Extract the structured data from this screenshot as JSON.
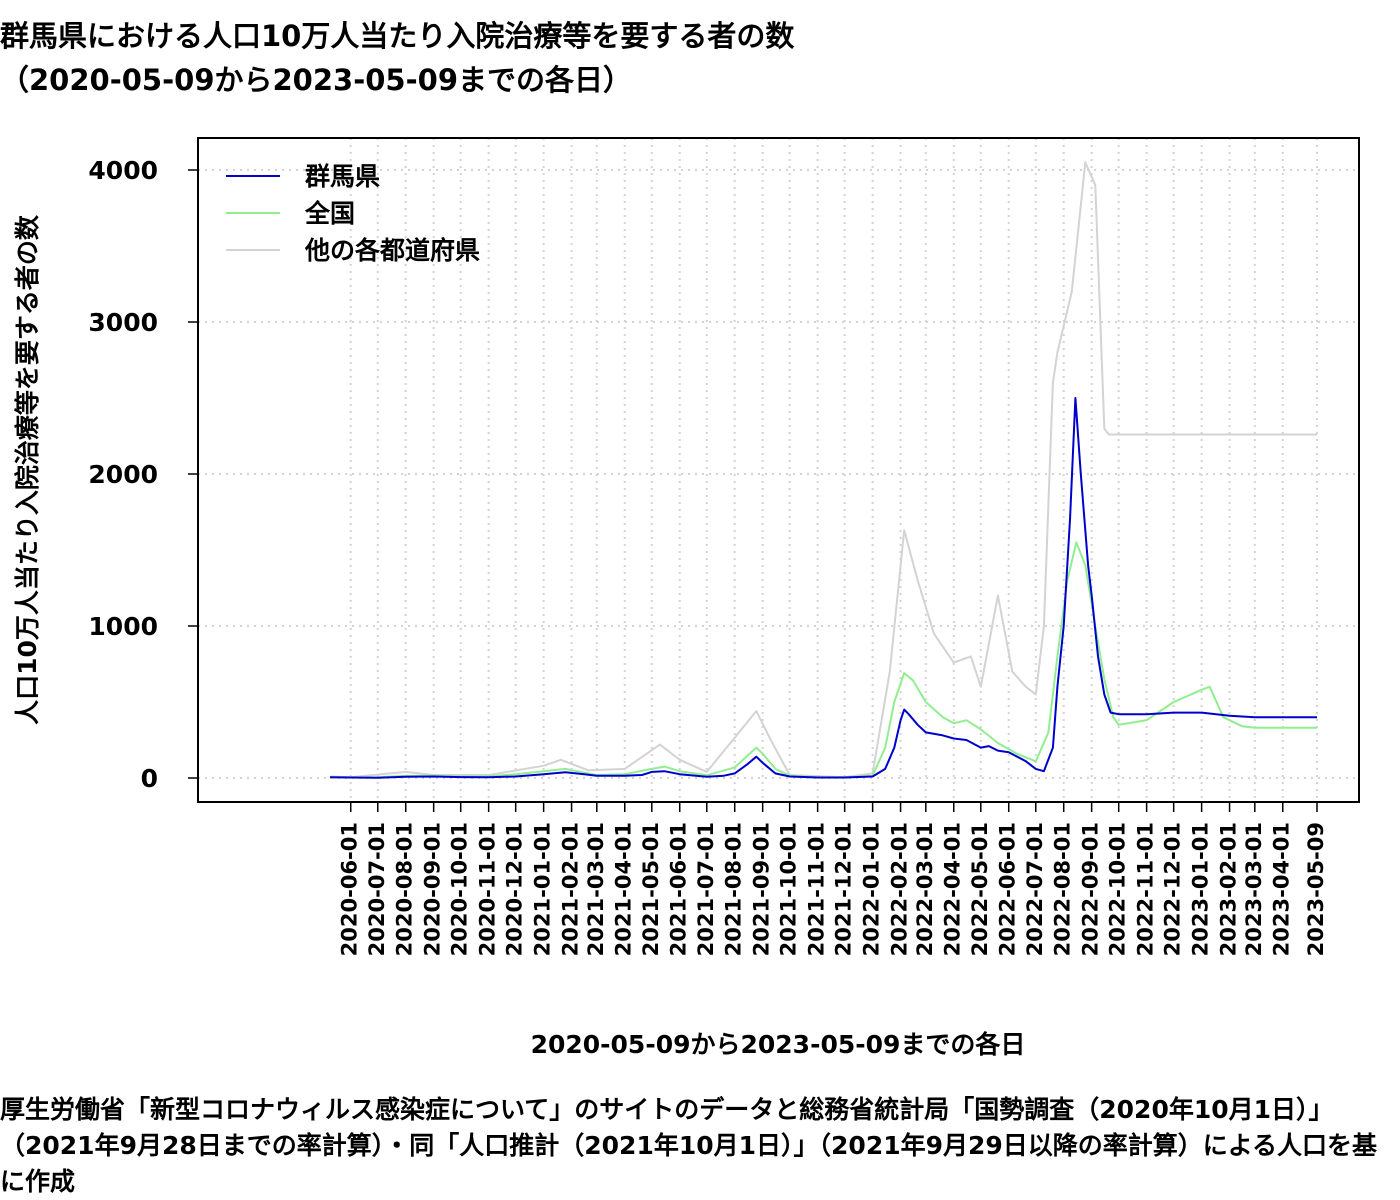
{
  "title": {
    "main": "群馬県における人口10万人当たり入院治療等を要する者の数",
    "sub": "（2020-05-09から2023-05-09までの各日）"
  },
  "footer": "厚生労働省「新型コロナウィルス感染症について」のサイトのデータと総務省統計局「国勢調査（2020年10月1日）」（2021年9月28日までの率計算）・同「人口推計（2021年10月1日）」（2021年9月29日以降の率計算）による人口を基に作成",
  "chart_data": {
    "type": "line",
    "title": "群馬県における人口10万人当たり入院治療等を要する者の数",
    "xlabel": "2020-05-09から2023-05-09までの各日",
    "ylabel": "人口10万人当たり入院治療等を要する者の数",
    "x_range": [
      "2020-05-09",
      "2023-05-09"
    ],
    "ylim": [
      0,
      4000
    ],
    "y_ticks": [
      0,
      1000,
      2000,
      3000,
      4000
    ],
    "x_tick_labels": [
      "2020-06-01",
      "2020-07-01",
      "2020-08-01",
      "2020-09-01",
      "2020-10-01",
      "2020-11-01",
      "2020-12-01",
      "2021-01-01",
      "2021-02-01",
      "2021-03-01",
      "2021-04-01",
      "2021-05-01",
      "2021-06-01",
      "2021-07-01",
      "2021-08-01",
      "2021-09-01",
      "2021-10-01",
      "2021-11-01",
      "2021-12-01",
      "2022-01-01",
      "2022-02-01",
      "2022-03-01",
      "2022-04-01",
      "2022-05-01",
      "2022-06-01",
      "2022-07-01",
      "2022-08-01",
      "2022-09-01",
      "2022-10-01",
      "2022-11-01",
      "2022-12-01",
      "2023-01-01",
      "2023-02-01",
      "2023-03-01",
      "2023-04-01",
      "2023-05-09"
    ],
    "grid": true,
    "legend_position": "top-left",
    "series": [
      {
        "name": "群馬県",
        "color": "#0000cc",
        "points": [
          [
            "2020-05-09",
            5
          ],
          [
            "2020-06-01",
            3
          ],
          [
            "2020-07-01",
            2
          ],
          [
            "2020-08-01",
            8
          ],
          [
            "2020-09-01",
            10
          ],
          [
            "2020-10-01",
            6
          ],
          [
            "2020-11-01",
            5
          ],
          [
            "2020-12-01",
            10
          ],
          [
            "2021-01-01",
            25
          ],
          [
            "2021-01-25",
            38
          ],
          [
            "2021-02-15",
            25
          ],
          [
            "2021-03-01",
            15
          ],
          [
            "2021-04-01",
            15
          ],
          [
            "2021-04-20",
            20
          ],
          [
            "2021-05-01",
            40
          ],
          [
            "2021-05-15",
            45
          ],
          [
            "2021-06-01",
            25
          ],
          [
            "2021-07-01",
            8
          ],
          [
            "2021-07-20",
            15
          ],
          [
            "2021-08-01",
            30
          ],
          [
            "2021-08-15",
            90
          ],
          [
            "2021-08-25",
            140
          ],
          [
            "2021-09-01",
            100
          ],
          [
            "2021-09-15",
            30
          ],
          [
            "2021-10-01",
            10
          ],
          [
            "2021-11-01",
            3
          ],
          [
            "2021-12-01",
            3
          ],
          [
            "2022-01-01",
            10
          ],
          [
            "2022-01-15",
            60
          ],
          [
            "2022-01-25",
            200
          ],
          [
            "2022-02-01",
            380
          ],
          [
            "2022-02-05",
            450
          ],
          [
            "2022-02-10",
            420
          ],
          [
            "2022-02-20",
            350
          ],
          [
            "2022-03-01",
            300
          ],
          [
            "2022-03-20",
            280
          ],
          [
            "2022-04-01",
            260
          ],
          [
            "2022-04-15",
            250
          ],
          [
            "2022-05-01",
            200
          ],
          [
            "2022-05-10",
            210
          ],
          [
            "2022-05-20",
            180
          ],
          [
            "2022-06-01",
            170
          ],
          [
            "2022-06-20",
            110
          ],
          [
            "2022-07-01",
            60
          ],
          [
            "2022-07-10",
            45
          ],
          [
            "2022-07-20",
            200
          ],
          [
            "2022-07-25",
            600
          ],
          [
            "2022-08-01",
            1000
          ],
          [
            "2022-08-08",
            1700
          ],
          [
            "2022-08-14",
            2500
          ],
          [
            "2022-08-20",
            2000
          ],
          [
            "2022-08-28",
            1400
          ],
          [
            "2022-09-01",
            1200
          ],
          [
            "2022-09-08",
            800
          ],
          [
            "2022-09-15",
            550
          ],
          [
            "2022-09-22",
            430
          ],
          [
            "2022-10-01",
            420
          ],
          [
            "2022-11-01",
            420
          ],
          [
            "2022-12-01",
            430
          ],
          [
            "2023-01-01",
            430
          ],
          [
            "2023-02-01",
            410
          ],
          [
            "2023-03-01",
            400
          ],
          [
            "2023-04-01",
            400
          ],
          [
            "2023-05-09",
            400
          ]
        ]
      },
      {
        "name": "全国",
        "color": "#90ee90",
        "points": [
          [
            "2020-05-09",
            5
          ],
          [
            "2020-06-01",
            3
          ],
          [
            "2020-07-01",
            5
          ],
          [
            "2020-08-01",
            15
          ],
          [
            "2020-09-01",
            15
          ],
          [
            "2020-10-01",
            8
          ],
          [
            "2020-11-01",
            12
          ],
          [
            "2020-12-01",
            25
          ],
          [
            "2021-01-01",
            45
          ],
          [
            "2021-01-25",
            60
          ],
          [
            "2021-02-15",
            35
          ],
          [
            "2021-03-01",
            20
          ],
          [
            "2021-04-01",
            25
          ],
          [
            "2021-05-01",
            60
          ],
          [
            "2021-05-15",
            75
          ],
          [
            "2021-06-01",
            45
          ],
          [
            "2021-07-01",
            18
          ],
          [
            "2021-08-01",
            70
          ],
          [
            "2021-08-25",
            200
          ],
          [
            "2021-09-01",
            160
          ],
          [
            "2021-09-15",
            60
          ],
          [
            "2021-10-01",
            15
          ],
          [
            "2021-11-01",
            4
          ],
          [
            "2021-12-01",
            4
          ],
          [
            "2022-01-01",
            15
          ],
          [
            "2022-01-15",
            200
          ],
          [
            "2022-01-25",
            500
          ],
          [
            "2022-02-05",
            690
          ],
          [
            "2022-02-15",
            640
          ],
          [
            "2022-03-01",
            500
          ],
          [
            "2022-03-20",
            400
          ],
          [
            "2022-04-01",
            360
          ],
          [
            "2022-04-15",
            380
          ],
          [
            "2022-05-01",
            320
          ],
          [
            "2022-05-20",
            230
          ],
          [
            "2022-06-10",
            160
          ],
          [
            "2022-07-01",
            110
          ],
          [
            "2022-07-15",
            300
          ],
          [
            "2022-07-25",
            800
          ],
          [
            "2022-08-05",
            1300
          ],
          [
            "2022-08-15",
            1550
          ],
          [
            "2022-08-25",
            1400
          ],
          [
            "2022-09-05",
            1000
          ],
          [
            "2022-09-15",
            650
          ],
          [
            "2022-09-25",
            400
          ],
          [
            "2022-10-01",
            350
          ],
          [
            "2022-11-01",
            380
          ],
          [
            "2022-12-01",
            500
          ],
          [
            "2023-01-01",
            580
          ],
          [
            "2023-01-10",
            600
          ],
          [
            "2023-01-25",
            400
          ],
          [
            "2023-02-15",
            340
          ],
          [
            "2023-03-01",
            330
          ],
          [
            "2023-05-09",
            330
          ]
        ]
      },
      {
        "name": "他の各都道府県",
        "color": "#d3d3d3",
        "points": [
          [
            "2020-05-09",
            10
          ],
          [
            "2020-06-01",
            5
          ],
          [
            "2020-08-01",
            40
          ],
          [
            "2020-09-01",
            20
          ],
          [
            "2020-11-01",
            20
          ],
          [
            "2021-01-01",
            80
          ],
          [
            "2021-01-20",
            120
          ],
          [
            "2021-02-20",
            50
          ],
          [
            "2021-04-01",
            60
          ],
          [
            "2021-05-10",
            220
          ],
          [
            "2021-06-01",
            120
          ],
          [
            "2021-07-01",
            40
          ],
          [
            "2021-08-25",
            440
          ],
          [
            "2021-09-10",
            250
          ],
          [
            "2021-10-01",
            20
          ],
          [
            "2021-12-01",
            5
          ],
          [
            "2022-01-01",
            30
          ],
          [
            "2022-01-20",
            700
          ],
          [
            "2022-02-05",
            1630
          ],
          [
            "2022-02-20",
            1300
          ],
          [
            "2022-03-10",
            950
          ],
          [
            "2022-04-01",
            760
          ],
          [
            "2022-04-20",
            800
          ],
          [
            "2022-05-01",
            600
          ],
          [
            "2022-05-20",
            1200
          ],
          [
            "2022-06-05",
            700
          ],
          [
            "2022-06-20",
            600
          ],
          [
            "2022-07-01",
            550
          ],
          [
            "2022-07-10",
            1000
          ],
          [
            "2022-07-20",
            2600
          ],
          [
            "2022-07-25",
            2800
          ],
          [
            "2022-08-10",
            3200
          ],
          [
            "2022-08-25",
            4050
          ],
          [
            "2022-09-05",
            3900
          ],
          [
            "2022-09-15",
            2300
          ],
          [
            "2022-09-20",
            2260
          ],
          [
            "2023-05-09",
            2260
          ]
        ]
      }
    ]
  }
}
